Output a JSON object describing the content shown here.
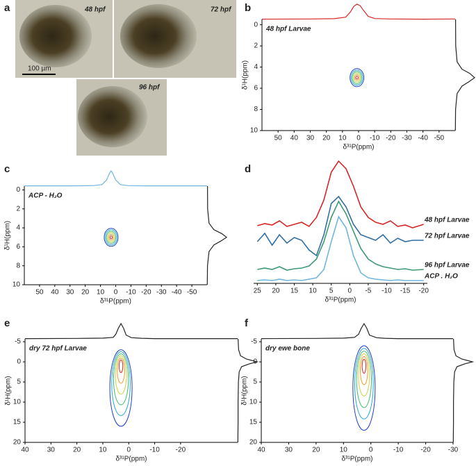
{
  "panel_labels": [
    "a",
    "b",
    "c",
    "d",
    "e",
    "f"
  ],
  "photos": {
    "labels": [
      "48 hpf",
      "72 hpf",
      "96 hpf"
    ],
    "label_colors": [
      "#d62728",
      "#2f6fa3",
      "#3c9a74"
    ],
    "scale_bar": "100 µm"
  },
  "chart_data": [
    {
      "type": "contour2d",
      "label": "48 hpf Larvae",
      "label_color": "#d62728",
      "xlabel": "δ³¹P(ppm)",
      "ylabel": "δ¹H(ppm)",
      "xlim": [
        60,
        -60
      ],
      "xticks": [
        50,
        40,
        30,
        20,
        10,
        0,
        -10,
        -20,
        -30,
        -40,
        -50
      ],
      "ylim": [
        -0.5,
        10
      ],
      "yticks": [
        0,
        2,
        4,
        6,
        8,
        10
      ],
      "peak": {
        "x": 1,
        "y": 5
      },
      "top_projection": {
        "color": "#d62728",
        "x": [
          60,
          30,
          15,
          8,
          5,
          3,
          1,
          -1,
          -3,
          -6,
          -10,
          -20,
          -40,
          -60
        ],
        "values": [
          0.02,
          0.03,
          0.05,
          0.15,
          0.5,
          0.85,
          1,
          0.9,
          0.6,
          0.2,
          0.06,
          0.03,
          0.02,
          0.03
        ]
      },
      "right_projection": {
        "color": "#222222",
        "y": [
          -0.5,
          2,
          3.5,
          4.2,
          4.6,
          5,
          5.4,
          5.8,
          6.5,
          8,
          10
        ],
        "values": [
          0.02,
          0.03,
          0.1,
          0.35,
          0.75,
          1,
          0.7,
          0.35,
          0.1,
          0.02,
          0.01
        ]
      }
    },
    {
      "type": "contour2d",
      "label": "ACP - H₂O",
      "label_color": "#6fb6e0",
      "xlabel": "δ³¹P(ppm)",
      "ylabel": "δ¹H(ppm)",
      "xlim": [
        60,
        -60
      ],
      "xticks": [
        50,
        40,
        30,
        20,
        10,
        0,
        -10,
        -20,
        -30,
        -40,
        -50
      ],
      "ylim": [
        -0.4,
        10
      ],
      "yticks": [
        0,
        2,
        4,
        6,
        8,
        10
      ],
      "peak": {
        "x": 3,
        "y": 5
      },
      "top_projection": {
        "color": "#6fb6e0",
        "x": [
          60,
          30,
          15,
          9,
          6,
          4,
          3,
          2,
          0,
          -3,
          -8,
          -20,
          -40,
          -60
        ],
        "values": [
          0.02,
          0.02,
          0.03,
          0.1,
          0.4,
          0.85,
          1,
          0.85,
          0.4,
          0.1,
          0.03,
          0.02,
          0.02,
          0.02
        ]
      },
      "right_projection": {
        "color": "#222222",
        "y": [
          -0.4,
          2,
          3.5,
          4.2,
          4.6,
          5,
          5.4,
          5.8,
          6.5,
          8,
          10
        ],
        "values": [
          0.02,
          0.03,
          0.1,
          0.35,
          0.75,
          1,
          0.7,
          0.35,
          0.1,
          0.02,
          0.01
        ]
      }
    },
    {
      "type": "line",
      "xlabel": "δ³¹P(ppm)",
      "xlim": [
        26,
        -21
      ],
      "xticks": [
        25,
        20,
        15,
        10,
        5,
        0,
        -5,
        -10,
        -15,
        -20
      ],
      "ylim": [
        0,
        190
      ],
      "x": [
        25,
        23,
        21,
        19,
        17,
        15,
        13,
        11,
        9,
        7,
        5,
        3,
        1,
        -1,
        -3,
        -5,
        -7,
        -9,
        -11,
        -13,
        -15,
        -17,
        -20
      ],
      "series": [
        {
          "name": "48 hpf Larvae",
          "color": "#d62728",
          "values": [
            83,
            86,
            84,
            90,
            82,
            85,
            88,
            82,
            95,
            120,
            160,
            176,
            165,
            140,
            110,
            95,
            88,
            85,
            90,
            82,
            84,
            80,
            85
          ]
        },
        {
          "name": "72 hpf Larvae",
          "color": "#2f6fa3",
          "values": [
            60,
            72,
            55,
            70,
            58,
            66,
            62,
            48,
            40,
            70,
            115,
            125,
            110,
            85,
            70,
            66,
            62,
            70,
            58,
            65,
            60,
            62,
            62
          ]
        },
        {
          "name": "96 hpf Larvae",
          "color": "#3c9a74",
          "values": [
            20,
            22,
            20,
            24,
            19,
            21,
            22,
            25,
            35,
            60,
            95,
            118,
            100,
            75,
            50,
            35,
            28,
            24,
            22,
            20,
            21,
            19,
            20
          ]
        },
        {
          "name": "ACP . H₂O",
          "color": "#6fb6e0",
          "values": [
            4,
            5,
            4,
            6,
            4,
            5,
            4,
            6,
            8,
            20,
            60,
            96,
            80,
            40,
            15,
            8,
            6,
            5,
            4,
            5,
            4,
            4,
            4
          ]
        }
      ]
    },
    {
      "type": "contour2d",
      "label": "dry 72 hpf Larvae",
      "label_color": "#111111",
      "xlabel": "δ³¹P(ppm)",
      "ylabel": "δ¹H(ppm)",
      "xlim": [
        40,
        -42
      ],
      "xticks": [
        40,
        30,
        20,
        10,
        0,
        -10,
        -20
      ],
      "ylim": [
        -5.7,
        20
      ],
      "yticks": [
        -5,
        0,
        5,
        10,
        15,
        20
      ],
      "peak": {
        "x": 3,
        "y": 0
      },
      "y_extent": [
        -3,
        16
      ],
      "top_projection": {
        "color": "#222222",
        "x": [
          40,
          20,
          10,
          6,
          5,
          4,
          3,
          2,
          1,
          -1,
          -5,
          -10,
          -42
        ],
        "values": [
          0.02,
          0.03,
          0.05,
          0.1,
          0.3,
          0.7,
          1,
          0.7,
          0.25,
          0.08,
          0.04,
          0.02,
          0.02
        ]
      },
      "right_projection": {
        "color": "#222222",
        "y": [
          -5.7,
          -3,
          -1.5,
          -0.7,
          0,
          0.5,
          1.2,
          2.5,
          5,
          10,
          15,
          20
        ],
        "values": [
          0.02,
          0.05,
          0.15,
          0.45,
          1,
          0.6,
          0.2,
          0.08,
          0.04,
          0.02,
          0.02,
          0.01
        ]
      }
    },
    {
      "type": "contour2d",
      "label": "dry ewe bone",
      "label_color": "#111111",
      "xlabel": "δ³¹P(ppm)",
      "ylabel": "δ¹H(ppm)",
      "xlim": [
        40,
        -30
      ],
      "xticks": [
        40,
        30,
        20,
        10,
        0,
        -10,
        -20,
        -30
      ],
      "ylim": [
        -5.7,
        20
      ],
      "yticks": [
        -5,
        0,
        5,
        10,
        15,
        20
      ],
      "peak": {
        "x": 2.5,
        "y": 0
      },
      "y_extent": [
        -4,
        17
      ],
      "top_projection": {
        "color": "#222222",
        "x": [
          40,
          20,
          10,
          6,
          4.5,
          3.5,
          2.5,
          1.5,
          0.5,
          -2,
          -5,
          -10,
          -30
        ],
        "values": [
          0.02,
          0.03,
          0.05,
          0.1,
          0.3,
          0.7,
          1,
          0.7,
          0.25,
          0.08,
          0.04,
          0.02,
          0.02
        ]
      },
      "right_projection": {
        "color": "#222222",
        "y": [
          -5.7,
          -3,
          -1.5,
          -0.7,
          0,
          0.5,
          1.2,
          2.5,
          5,
          10,
          15,
          20
        ],
        "values": [
          0.02,
          0.05,
          0.15,
          0.45,
          1,
          0.6,
          0.2,
          0.08,
          0.04,
          0.02,
          0.02,
          0.01
        ]
      }
    }
  ]
}
